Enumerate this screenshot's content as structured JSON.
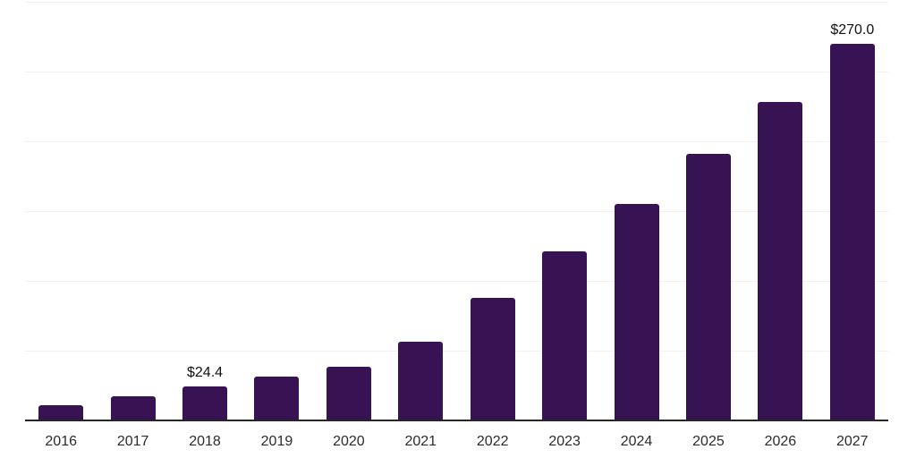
{
  "chart_data": {
    "type": "bar",
    "title": "",
    "xlabel": "",
    "ylabel": "",
    "categories": [
      "2016",
      "2017",
      "2018",
      "2019",
      "2020",
      "2021",
      "2022",
      "2023",
      "2024",
      "2025",
      "2026",
      "2027"
    ],
    "values": [
      10.9,
      17.4,
      24.4,
      31.6,
      38.5,
      56.5,
      88.0,
      121.2,
      155.1,
      190.8,
      228.0,
      270.0
    ],
    "bar_labels": [
      "",
      "",
      "$24.4",
      "",
      "",
      "",
      "",
      "",
      "",
      "",
      "",
      "$270.0"
    ],
    "ylim": [
      0,
      300
    ],
    "gridline_step": 50,
    "grid": true,
    "legend": "none",
    "colors": {
      "bar": "#371353",
      "gridline": "#f1f1f1",
      "axis": "#262626",
      "tick_label": "#2b2b2b",
      "value_label": "#111111",
      "background": "#ffffff"
    }
  }
}
